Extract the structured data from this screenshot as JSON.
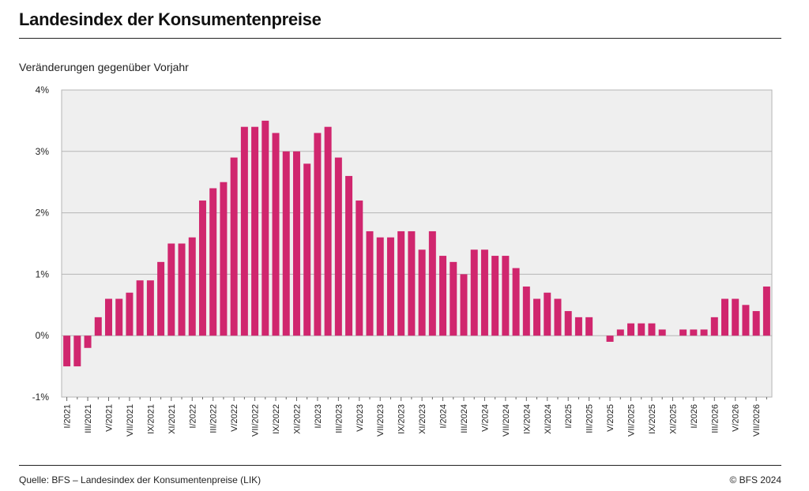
{
  "title": "Landesindex der Konsumentenpreise",
  "subtitle": "Veränderungen gegenüber Vorjahr",
  "source": "Quelle: BFS – Landesindex der Konsumentenpreise (LIK)",
  "copyright": "© BFS 2024",
  "colors": {
    "bar": "#d0266e",
    "plot_bg": "#efefef",
    "grid": "#b5b5b5"
  },
  "chart_data": {
    "type": "bar",
    "ylim": [
      -1,
      4
    ],
    "yticks": [
      -1,
      0,
      1,
      2,
      3,
      4
    ],
    "ytick_labels": [
      "-1%",
      "0%",
      "1%",
      "2%",
      "3%",
      "4%"
    ],
    "grid": true,
    "categories": [
      "I/2021",
      "II/2021",
      "III/2021",
      "IV/2021",
      "V/2021",
      "VI/2021",
      "VII/2021",
      "VIII/2021",
      "IX/2021",
      "X/2021",
      "XI/2021",
      "XII/2021",
      "I/2022",
      "II/2022",
      "III/2022",
      "IV/2022",
      "V/2022",
      "VI/2022",
      "VII/2022",
      "VIII/2022",
      "IX/2022",
      "X/2022",
      "XI/2022",
      "XII/2022",
      "I/2023",
      "II/2023",
      "III/2023",
      "IV/2023",
      "V/2023",
      "VI/2023",
      "VII/2023",
      "VIII/2023",
      "IX/2023",
      "X/2023",
      "XI/2023",
      "XII/2023",
      "I/2024",
      "II/2024",
      "III/2024",
      "IV/2024",
      "V/2024",
      "VI/2024",
      "VII/2024",
      "VIII/2024",
      "IX/2024",
      "X/2024",
      "XI/2024",
      "XII/2024",
      "I/2025",
      "II/2025",
      "III/2025",
      "IV/2025",
      "V/2025",
      "VI/2025",
      "VII/2025",
      "VIII/2025",
      "IX/2025",
      "X/2025",
      "XI/2025",
      "XII/2025",
      "I/2026",
      "II/2026",
      "III/2026",
      "IV/2026",
      "V/2026",
      "VI/2026",
      "VII/2026",
      "VIII/2026"
    ],
    "xtick_labels": [
      "I/2021",
      "III/2021",
      "V/2021",
      "VII/2021",
      "IX/2021",
      "XI/2021",
      "I/2022",
      "III/2022",
      "V/2022",
      "VII/2022",
      "IX/2022",
      "XI/2022",
      "I/2023",
      "III/2023",
      "V/2023",
      "VII/2023",
      "IX/2023",
      "XI/2023",
      "I/2024",
      "III/2024",
      "V/2024",
      "VII/2024",
      "IX/2024",
      "XI/2024",
      "I/2025",
      "III/2025",
      "V/2025",
      "VII/2025",
      "IX/2025",
      "XI/2025",
      "I/2026",
      "III/2026",
      "V/2026",
      "VII/2026"
    ],
    "values": [
      -0.5,
      -0.5,
      -0.2,
      0.3,
      0.6,
      0.6,
      0.7,
      0.9,
      0.9,
      1.2,
      1.5,
      1.5,
      1.6,
      2.2,
      2.4,
      2.5,
      2.9,
      3.4,
      3.4,
      3.5,
      3.3,
      3.0,
      3.0,
      2.8,
      3.3,
      3.4,
      2.9,
      2.6,
      2.2,
      1.7,
      1.6,
      1.6,
      1.7,
      1.7,
      1.4,
      1.7,
      1.3,
      1.2,
      1.0,
      1.4,
      1.4,
      1.3,
      1.3,
      1.1,
      0.8,
      0.6,
      0.7,
      0.6,
      0.4,
      0.3,
      0.3,
      0.0,
      -0.1,
      0.1,
      0.2,
      0.2,
      0.2,
      0.1,
      0.0,
      0.1,
      0.1,
      0.1,
      0.3,
      0.6,
      0.6,
      0.5,
      0.4,
      0.8
    ]
  }
}
